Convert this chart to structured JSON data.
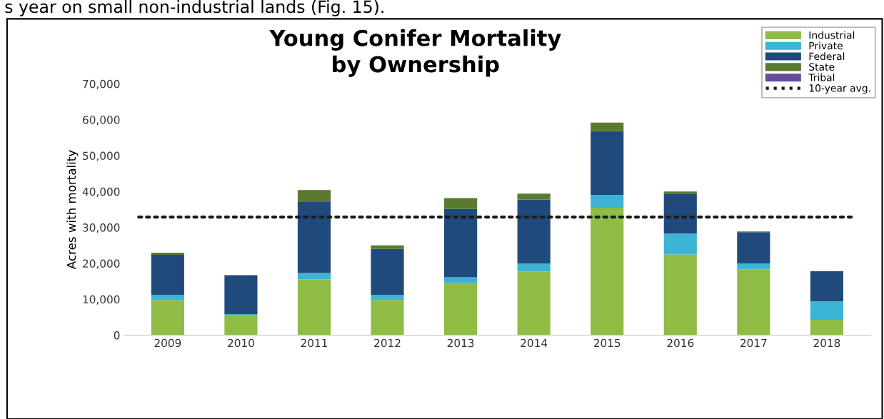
{
  "chart_data": {
    "type": "bar",
    "title": "Young Conifer Mortality\nby Ownership",
    "ylabel": "Acres with mortality",
    "categories": [
      "2009",
      "2010",
      "2011",
      "2012",
      "2013",
      "2014",
      "2015",
      "2016",
      "2017",
      "2018"
    ],
    "stacked": true,
    "series": [
      {
        "name": "Industrial",
        "color": "#8fbc45",
        "values": [
          9800,
          5700,
          15500,
          9800,
          14600,
          17700,
          35500,
          22500,
          18300,
          4300
        ]
      },
      {
        "name": "Private",
        "color": "#3cb4d6",
        "values": [
          1400,
          200,
          1800,
          1400,
          1500,
          2300,
          3500,
          5800,
          1700,
          5100
        ]
      },
      {
        "name": "Federal",
        "color": "#214a7c",
        "values": [
          11200,
          10800,
          19800,
          12800,
          19100,
          17800,
          17800,
          11100,
          8700,
          8400
        ]
      },
      {
        "name": "State",
        "color": "#5a7a2e",
        "values": [
          600,
          0,
          3300,
          1000,
          3000,
          1600,
          2400,
          600,
          200,
          0
        ]
      },
      {
        "name": "Tribal",
        "color": "#6a4c9c",
        "values": [
          0,
          0,
          0,
          0,
          0,
          0,
          0,
          0,
          0,
          0
        ]
      }
    ],
    "ref_lines": [
      {
        "axis": "y",
        "value": 32900,
        "label": "10-year avg.",
        "color": "#1a1a1a",
        "line_style": "dotted"
      }
    ],
    "ylim": [
      0,
      70000
    ],
    "yticks": [
      {
        "value": 0,
        "label": "0"
      },
      {
        "value": 10000,
        "label": "10,000"
      },
      {
        "value": 20000,
        "label": "20,000"
      },
      {
        "value": 30000,
        "label": "30,000"
      },
      {
        "value": 40000,
        "label": "40,000"
      },
      {
        "value": 50000,
        "label": "50,000"
      },
      {
        "value": 60000,
        "label": "60,000"
      },
      {
        "value": 70000,
        "label": "70,000"
      }
    ],
    "grid": false,
    "legend": "top right",
    "annotations": [
      "s year on small non-industrial lands (Fig. 15)."
    ]
  }
}
